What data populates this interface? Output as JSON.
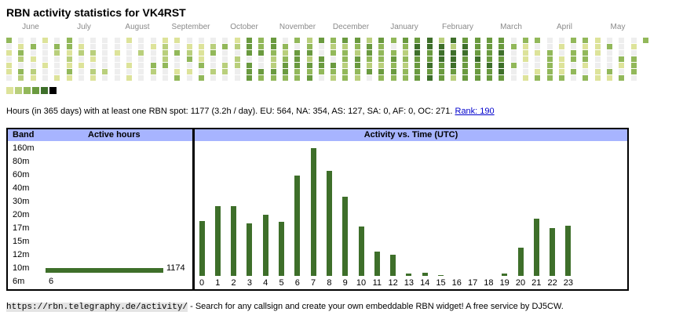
{
  "title": "RBN activity statistics for VK4RST",
  "months": [
    "June",
    "July",
    "August",
    "September",
    "October",
    "November",
    "December",
    "January",
    "February",
    "March",
    "April",
    "May"
  ],
  "heatmap_levels": [
    "#eeeeee",
    "#dde39a",
    "#b9cf7c",
    "#92b85a",
    "#6a9a3f",
    "#3e6f2a",
    "#000000"
  ],
  "summary": {
    "text": "Hours (in 365 days) with at least one RBN spot: 1177 (3.2h / day). EU: 564, NA: 354, AS: 127, SA: 0, AF: 0, OC: 271.",
    "rank_label": "Rank: 190"
  },
  "band_panel": {
    "header_band": "Band",
    "header_hours": "Active hours",
    "bands": [
      {
        "name": "160m",
        "hours": null,
        "label": ""
      },
      {
        "name": "80m",
        "hours": null,
        "label": ""
      },
      {
        "name": "60m",
        "hours": null,
        "label": ""
      },
      {
        "name": "40m",
        "hours": null,
        "label": ""
      },
      {
        "name": "30m",
        "hours": null,
        "label": ""
      },
      {
        "name": "20m",
        "hours": null,
        "label": ""
      },
      {
        "name": "17m",
        "hours": null,
        "label": ""
      },
      {
        "name": "15m",
        "hours": null,
        "label": ""
      },
      {
        "name": "12m",
        "hours": null,
        "label": ""
      },
      {
        "name": "10m",
        "hours": 1174,
        "label": "1174"
      },
      {
        "name": "6m",
        "hours": 6,
        "label": "6"
      }
    ]
  },
  "chart_data": {
    "type": "bar",
    "title": "Activity vs. Time (UTC)",
    "categories": [
      "0",
      "1",
      "2",
      "3",
      "4",
      "5",
      "6",
      "7",
      "8",
      "9",
      "10",
      "11",
      "12",
      "13",
      "14",
      "15",
      "16",
      "17",
      "18",
      "19",
      "20",
      "21",
      "22",
      "23"
    ],
    "values": [
      47,
      60,
      60,
      45,
      52,
      46,
      86,
      109,
      90,
      68,
      42,
      21,
      18,
      2,
      3,
      1,
      0,
      0,
      0,
      2,
      24,
      49,
      41,
      43
    ],
    "ylim": [
      0,
      110
    ]
  },
  "footer": {
    "url": "https://rbn.telegraphy.de/activity/",
    "text": " - Search for any callsign and create your own embeddable RBN widget! A free service by DJ5CW."
  }
}
